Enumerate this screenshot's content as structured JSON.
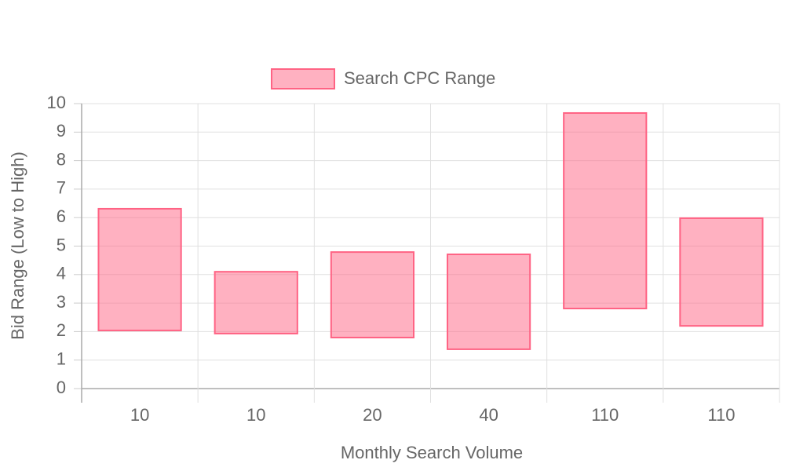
{
  "chart_data": {
    "type": "bar",
    "categories": [
      "10",
      "10",
      "20",
      "40",
      "110",
      "110"
    ],
    "series": [
      {
        "name": "Search CPC Range",
        "color": "#ff6384",
        "values": [
          [
            2.04,
            6.31
          ],
          [
            1.93,
            4.1
          ],
          [
            1.79,
            4.79
          ],
          [
            1.38,
            4.71
          ],
          [
            2.81,
            9.67
          ],
          [
            2.2,
            5.98
          ]
        ]
      }
    ],
    "x_label": "Monthly Search Volume",
    "y_label": "Bid Range (Low to High)",
    "ylim": [
      0,
      10
    ],
    "yticks": [
      0,
      1,
      2,
      3,
      4,
      5,
      6,
      7,
      8,
      9,
      10
    ],
    "grid": true,
    "legend": "top"
  }
}
